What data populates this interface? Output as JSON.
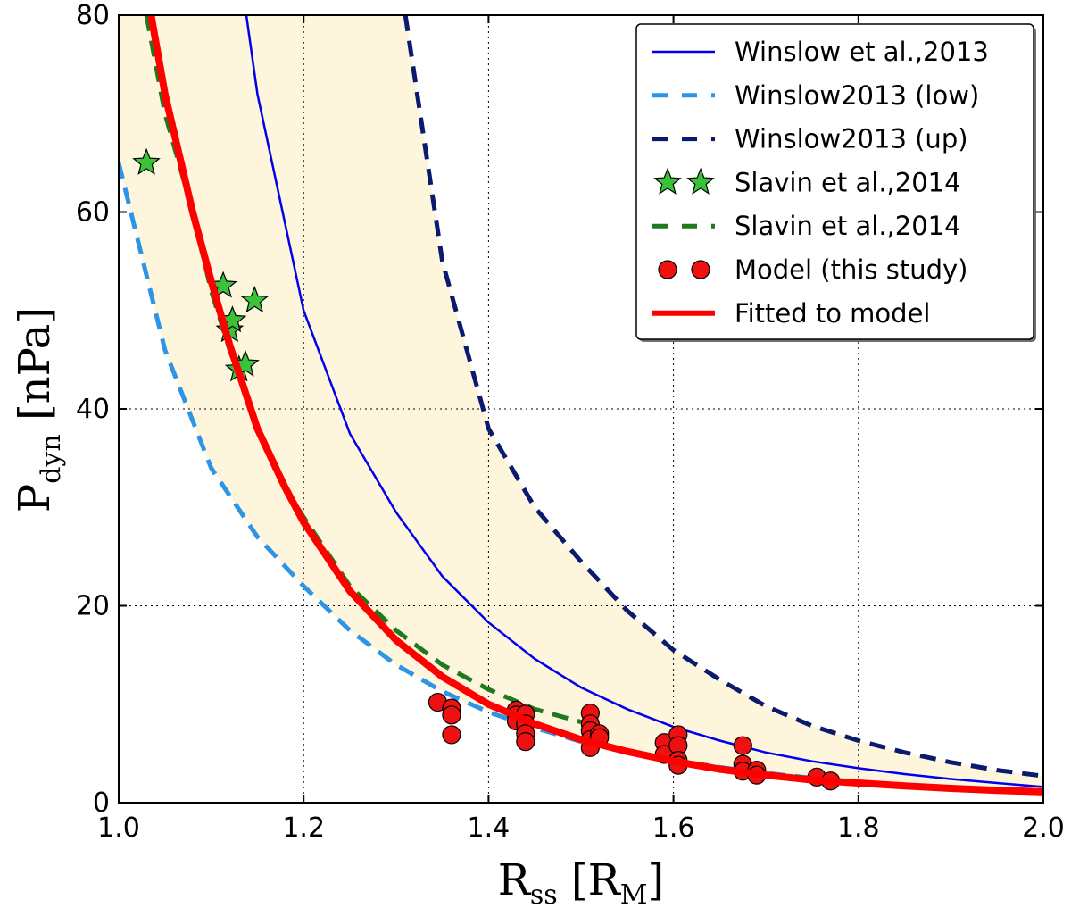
{
  "chart_data": {
    "type": "line",
    "xlabel": {
      "main": "R",
      "sub": "ss",
      "unit_main": "R",
      "unit_sub": "M"
    },
    "ylabel": {
      "main": "P",
      "sub": "dyn",
      "unit": "nPa"
    },
    "xlim": [
      1.0,
      2.0
    ],
    "ylim": [
      0,
      80
    ],
    "xticks": [
      1.0,
      1.2,
      1.4,
      1.6,
      1.8,
      2.0
    ],
    "xtick_labels": [
      "1.0",
      "1.2",
      "1.4",
      "1.6",
      "1.8",
      "2.0"
    ],
    "yticks": [
      0,
      20,
      40,
      60,
      80
    ],
    "ytick_labels": [
      "0",
      "20",
      "40",
      "60",
      "80"
    ],
    "grid": true,
    "legend_position": "top-right",
    "shaded_band": {
      "between": [
        "Winslow2013 (low)",
        "Winslow2013 (up)"
      ],
      "color": "#fdf5dc"
    },
    "series": [
      {
        "name": "Winslow et al.,2013",
        "kind": "line",
        "color": "#0000ee",
        "dash": "solid",
        "width": 2.5,
        "x": [
          1.138,
          1.15,
          1.2,
          1.25,
          1.3,
          1.35,
          1.4,
          1.45,
          1.5,
          1.55,
          1.6,
          1.65,
          1.7,
          1.75,
          1.8,
          1.85,
          1.9,
          1.95,
          2.0
        ],
        "y": [
          80.0,
          72.0,
          50.0,
          37.5,
          29.5,
          23.0,
          18.3,
          14.6,
          11.7,
          9.5,
          7.7,
          6.3,
          5.1,
          4.2,
          3.5,
          2.9,
          2.4,
          2.0,
          1.6
        ]
      },
      {
        "name": "Winslow2013 (low)",
        "kind": "line",
        "color": "#2e95e6",
        "dash": "dashed",
        "width": 5,
        "x": [
          1.0,
          1.05,
          1.1,
          1.15,
          1.2,
          1.25,
          1.3,
          1.35,
          1.4,
          1.45,
          1.5,
          1.55,
          1.6,
          1.65,
          1.7,
          1.75,
          1.8,
          1.85,
          1.9,
          1.95,
          2.0
        ],
        "y": [
          65.0,
          46.0,
          34.0,
          27.0,
          22.0,
          17.5,
          14.0,
          11.3,
          9.2,
          7.6,
          6.2,
          5.2,
          4.3,
          3.6,
          3.0,
          2.5,
          2.1,
          1.8,
          1.5,
          1.25,
          1.05
        ]
      },
      {
        "name": "Winslow2013 (up)",
        "kind": "line",
        "color": "#0a1a6e",
        "dash": "dashed",
        "width": 5,
        "x": [
          1.31,
          1.35,
          1.4,
          1.45,
          1.5,
          1.55,
          1.6,
          1.65,
          1.7,
          1.75,
          1.8,
          1.85,
          1.9,
          1.95,
          2.0
        ],
        "y": [
          80.0,
          55.0,
          38.0,
          30.0,
          24.5,
          19.5,
          15.5,
          12.5,
          9.8,
          7.8,
          6.3,
          5.1,
          4.1,
          3.3,
          2.7
        ]
      },
      {
        "name": "Slavin et al.,2014",
        "kind": "scatter",
        "marker": "star",
        "color": "#3ac23a",
        "x": [
          1.03,
          1.113,
          1.12,
          1.123,
          1.147,
          1.13,
          1.137
        ],
        "y": [
          65.0,
          52.5,
          48.0,
          49.0,
          51.0,
          44.0,
          44.5
        ]
      },
      {
        "name": "Slavin et al.,2014",
        "kind": "line",
        "color": "#1f7a1f",
        "dash": "dashed",
        "width": 5,
        "x": [
          1.03,
          1.05,
          1.08,
          1.1,
          1.12,
          1.15,
          1.18,
          1.2,
          1.25,
          1.3,
          1.35,
          1.4,
          1.45,
          1.5
        ],
        "y": [
          80.0,
          70.0,
          60.0,
          52.0,
          46.0,
          38.0,
          32.0,
          29.0,
          22.0,
          17.5,
          14.0,
          11.5,
          9.5,
          8.2
        ]
      },
      {
        "name": "Model (this study)",
        "kind": "scatter",
        "marker": "circle",
        "color": "#ee1111",
        "x": [
          1.345,
          1.36,
          1.36,
          1.36,
          1.43,
          1.43,
          1.43,
          1.44,
          1.44,
          1.44,
          1.44,
          1.51,
          1.51,
          1.51,
          1.51,
          1.51,
          1.52,
          1.52,
          1.59,
          1.59,
          1.605,
          1.605,
          1.605,
          1.605,
          1.675,
          1.675,
          1.675,
          1.69,
          1.69,
          1.755,
          1.77
        ],
        "y": [
          10.2,
          9.6,
          8.9,
          6.9,
          9.4,
          8.9,
          8.3,
          9.0,
          8.0,
          7.0,
          6.2,
          9.1,
          8.0,
          7.3,
          6.4,
          5.6,
          7.0,
          6.6,
          6.1,
          4.9,
          6.9,
          5.8,
          4.3,
          3.8,
          5.8,
          3.9,
          3.2,
          3.3,
          2.8,
          2.6,
          2.2
        ]
      },
      {
        "name": "Fitted to model",
        "kind": "line",
        "color": "#ff0000",
        "dash": "solid",
        "width": 8,
        "x": [
          1.035,
          1.05,
          1.08,
          1.1,
          1.12,
          1.15,
          1.18,
          1.2,
          1.25,
          1.3,
          1.35,
          1.4,
          1.45,
          1.5,
          1.55,
          1.6,
          1.65,
          1.7,
          1.75,
          1.8,
          1.85,
          1.9,
          1.95,
          2.0
        ],
        "y": [
          80.0,
          72.0,
          60.0,
          53.0,
          46.5,
          38.0,
          32.0,
          28.5,
          21.5,
          16.5,
          12.8,
          10.0,
          8.0,
          6.4,
          5.2,
          4.2,
          3.4,
          2.8,
          2.3,
          2.0,
          1.7,
          1.45,
          1.25,
          1.1
        ]
      }
    ],
    "legend": [
      {
        "label": "Winslow et al.,2013",
        "series": 0
      },
      {
        "label": "Winslow2013 (low)",
        "series": 1
      },
      {
        "label": "Winslow2013 (up)",
        "series": 2
      },
      {
        "label": "Slavin et al.,2014",
        "series": 3
      },
      {
        "label": "Slavin et al.,2014",
        "series": 4
      },
      {
        "label": "Model (this study)",
        "series": 5
      },
      {
        "label": "Fitted to model",
        "series": 6
      }
    ]
  }
}
